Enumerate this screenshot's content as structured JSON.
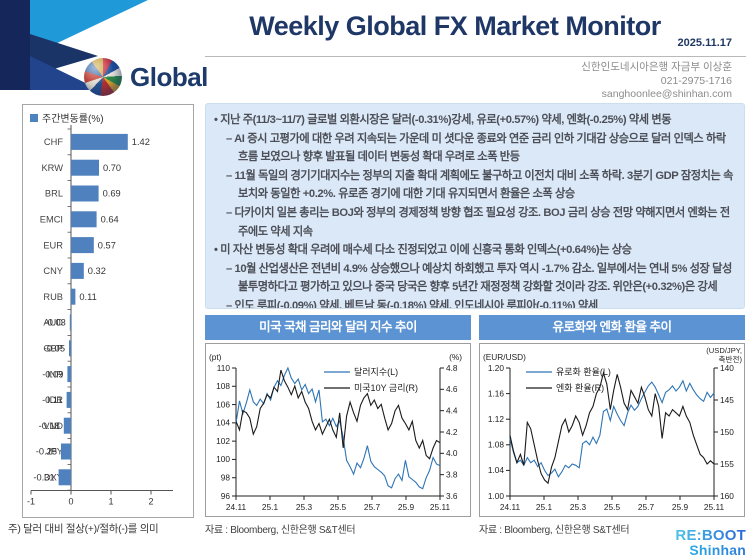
{
  "header": {
    "title": "Weekly Global FX Market Monitor",
    "date": "2025.11.17",
    "brand": "Global",
    "contact_lines": [
      "신한인도네시아은행 자금부 이상훈",
      "021-2975-1716",
      "sanghoonlee@shinhan.com"
    ]
  },
  "commentary": [
    {
      "level": 1,
      "text": "지난 주(11/3~11/7) 글로벌 외환시장은 달러(-0.31%)강세, 유로(+0.57%) 약세, 엔화(-0.25%) 약세 변동"
    },
    {
      "level": 2,
      "text": "AI 증시 고평가에 대한 우려 지속되는 가운데 미 셧다운 종료와 연준 금리 인하 기대감 상승으로 달러 인덱스 하락 흐름 보였으나 향후 발표될 데이터 변동성 확대 우려로 소폭 반등"
    },
    {
      "level": 2,
      "text": "11월 독일의 경기기대지수는 정부의 지출 확대 계획에도 불구하고 이전치 대비 소폭 하락. 3분기 GDP 잠정치는 속보치와 동일한 +0.2%. 유로존 경기에 대한 기대 유지되면서 환율은 소폭 상승"
    },
    {
      "level": 2,
      "text": "다카이치 일본 총리는 BOJ와 정부의 경제정책 방향 협조 필요성 강조. BOJ 금리 상승 전망 약해지면서 엔화는 전주에도 약세 지속"
    },
    {
      "level": 1,
      "text": "미 자산 변동성 확대 우려에 매수세 다소 진정되었고 이에 신흥국 통화 인덱스(+0.64%)는 상승"
    },
    {
      "level": 2,
      "text": "10월 산업생산은 전년비 4.9% 상승했으나 예상치 하회했고 투자 역시 -1.7% 감소. 일부에서는 연내 5% 성장 달성 불투명하다고 평가하고 있으나 중국 당국은 향후 5년간 재정정책 강화할 것이라 강조. 위안은(+0.32%)은 강세"
    },
    {
      "level": 2,
      "text": "인도 루피(-0.09%) 약세, 베트남 동(-0.18%) 약세, 인도네시아 루피아(-0.11%) 약세"
    }
  ],
  "colors": {
    "navy": "#1e3766",
    "chart_header_blue": "#5b93d3",
    "bar_blue": "#4e81bd",
    "line_blue": "#2e75b6",
    "line_black": "#1a1a1a",
    "panel_bg": "#dbe8f7"
  },
  "chart_data": [
    {
      "type": "bar",
      "title": "주간변동률(%)",
      "note": "주) 달러 대비 절상(+)/절하(-)를 의미",
      "categories": [
        "CHF",
        "KRW",
        "BRL",
        "EMCI",
        "EUR",
        "CNY",
        "RUB",
        "AUD",
        "GBP",
        "INR",
        "IDR",
        "VND",
        "JPY",
        "DXY"
      ],
      "values": [
        1.42,
        0.7,
        0.69,
        0.64,
        0.57,
        0.32,
        0.11,
        -0.03,
        -0.05,
        -0.09,
        -0.11,
        -0.18,
        -0.25,
        -0.31
      ],
      "xlim": [
        -1,
        2
      ],
      "xticks": [
        -1,
        0,
        1,
        2
      ],
      "bar_color": "#4e81bd"
    },
    {
      "type": "line",
      "title": "미국 국채 금리와 달러 지수 추이",
      "source": "자료 : Bloomberg, 신한은행 S&T센터",
      "x_ticks": [
        "24.11",
        "25.1",
        "25.3",
        "25.5",
        "25.7",
        "25.9",
        "25.11"
      ],
      "legend_pos": "right",
      "left_axis": {
        "unit": "(pt)",
        "min": 96,
        "max": 110,
        "reversed": false,
        "tick_values": [
          96,
          98,
          100,
          102,
          104,
          106,
          108,
          110
        ],
        "tick_labels": [
          "96",
          "98",
          "100",
          "102",
          "104",
          "106",
          "108",
          "110"
        ]
      },
      "right_axis": {
        "unit": "(%)",
        "min": 3.6,
        "max": 4.8,
        "reversed": false,
        "tick_values": [
          3.6,
          3.8,
          4.0,
          4.2,
          4.4,
          4.6,
          4.8
        ],
        "tick_labels": [
          "3.6",
          "3.8",
          "4.0",
          "4.2",
          "4.4",
          "4.6",
          "4.8"
        ]
      },
      "series": [
        {
          "name": "달러지수(L)",
          "axis": "left",
          "color": "#2e75b6",
          "values": [
            104.0,
            106.4,
            105.0,
            106.2,
            107.6,
            106.3,
            105.9,
            106.6,
            106.1,
            107.2,
            106.5,
            107.9,
            108.6,
            108.1,
            109.2,
            110.0,
            108.9,
            108.3,
            108.8,
            107.6,
            108.2,
            107.2,
            107.7,
            106.3,
            107.6,
            104.1,
            104.4,
            103.7,
            104.5,
            103.6,
            104.2,
            102.4,
            99.9,
            99.2,
            98.4,
            99.6,
            99.1,
            100.1,
            101.5,
            99.8,
            99.2,
            98.9,
            98.6,
            98.2,
            97.1,
            96.9,
            97.9,
            98.4,
            97.7,
            99.9,
            98.1,
            97.8,
            97.5,
            97.0,
            96.8,
            98.0,
            98.8,
            100.2,
            99.5,
            99.3
          ]
        },
        {
          "name": "미국10Y 금리(R)",
          "axis": "right",
          "color": "#1a1a1a",
          "values": [
            4.3,
            4.22,
            4.4,
            4.38,
            4.33,
            4.18,
            4.25,
            4.42,
            4.47,
            4.55,
            4.52,
            4.62,
            4.58,
            4.78,
            4.68,
            4.62,
            4.55,
            4.63,
            4.52,
            4.58,
            4.48,
            4.42,
            4.3,
            4.22,
            4.28,
            4.18,
            4.25,
            4.32,
            4.22,
            4.15,
            4.38,
            4.05,
            4.35,
            4.48,
            4.38,
            4.3,
            4.45,
            4.52,
            4.56,
            4.45,
            4.5,
            4.42,
            4.46,
            4.33,
            4.22,
            4.28,
            4.4,
            4.45,
            4.33,
            4.28,
            4.22,
            4.3,
            4.12,
            4.05,
            4.12,
            3.98,
            3.95,
            4.05,
            4.12,
            4.1
          ]
        }
      ]
    },
    {
      "type": "line",
      "title": "유로화와 엔화 환율 추이",
      "source": "자료 : Bloomberg, 신한은행 S&T센터",
      "x_ticks": [
        "24.11",
        "25.1",
        "25.3",
        "25.5",
        "25.7",
        "25.9",
        "25.11"
      ],
      "legend_pos": "left",
      "left_axis": {
        "unit": "(EUR/USD)",
        "min": 1.0,
        "max": 1.2,
        "reversed": false,
        "tick_values": [
          1.0,
          1.04,
          1.08,
          1.12,
          1.16,
          1.2
        ],
        "tick_labels": [
          "1.00",
          "1.04",
          "1.08",
          "1.12",
          "1.16",
          "1.20"
        ]
      },
      "right_axis": {
        "unit": "(USD/JPY,",
        "unit2": "축반전)",
        "min": 140,
        "max": 160,
        "reversed": true,
        "tick_values": [
          140,
          145,
          150,
          155,
          160
        ],
        "tick_labels": [
          "140",
          "145",
          "150",
          "155",
          "160"
        ]
      },
      "series": [
        {
          "name": "유로화 환율(L)",
          "axis": "left",
          "color": "#2e75b6",
          "values": [
            1.09,
            1.068,
            1.052,
            1.056,
            1.048,
            1.06,
            1.052,
            1.056,
            1.046,
            1.052,
            1.04,
            1.032,
            1.036,
            1.042,
            1.03,
            1.038,
            1.048,
            1.044,
            1.05,
            1.048,
            1.044,
            1.082,
            1.086,
            1.08,
            1.092,
            1.082,
            1.095,
            1.132,
            1.136,
            1.118,
            1.14,
            1.128,
            1.118,
            1.11,
            1.13,
            1.142,
            1.134,
            1.14,
            1.152,
            1.162,
            1.172,
            1.178,
            1.17,
            1.158,
            1.146,
            1.162,
            1.166,
            1.172,
            1.164,
            1.17,
            1.18,
            1.164,
            1.176,
            1.166,
            1.158,
            1.152,
            1.148,
            1.162,
            1.154,
            1.161
          ]
        },
        {
          "name": "엔화 환율(R)",
          "axis": "right",
          "color": "#1a1a1a",
          "values": [
            150.5,
            153.0,
            154.8,
            153.5,
            155.2,
            148.5,
            149.5,
            152.0,
            154.5,
            156.5,
            157.5,
            158.0,
            155.5,
            154.0,
            151.5,
            149.0,
            148.0,
            150.0,
            149.0,
            147.5,
            148.5,
            150.5,
            149.0,
            147.0,
            146.0,
            144.0,
            143.0,
            140.8,
            142.5,
            146.5,
            143.5,
            141.0,
            143.0,
            145.5,
            146.5,
            143.5,
            144.5,
            145.5,
            143.0,
            144.5,
            146.5,
            147.5,
            144.0,
            146.0,
            151.0,
            147.0,
            147.5,
            146.5,
            147.0,
            147.5,
            146.0,
            147.5,
            148.5,
            150.5,
            152.0,
            153.5,
            154.0,
            155.0,
            154.5,
            155.0
          ]
        }
      ]
    }
  ],
  "logo": {
    "line1": "RE:BOOT",
    "line2": "Shinhan"
  }
}
